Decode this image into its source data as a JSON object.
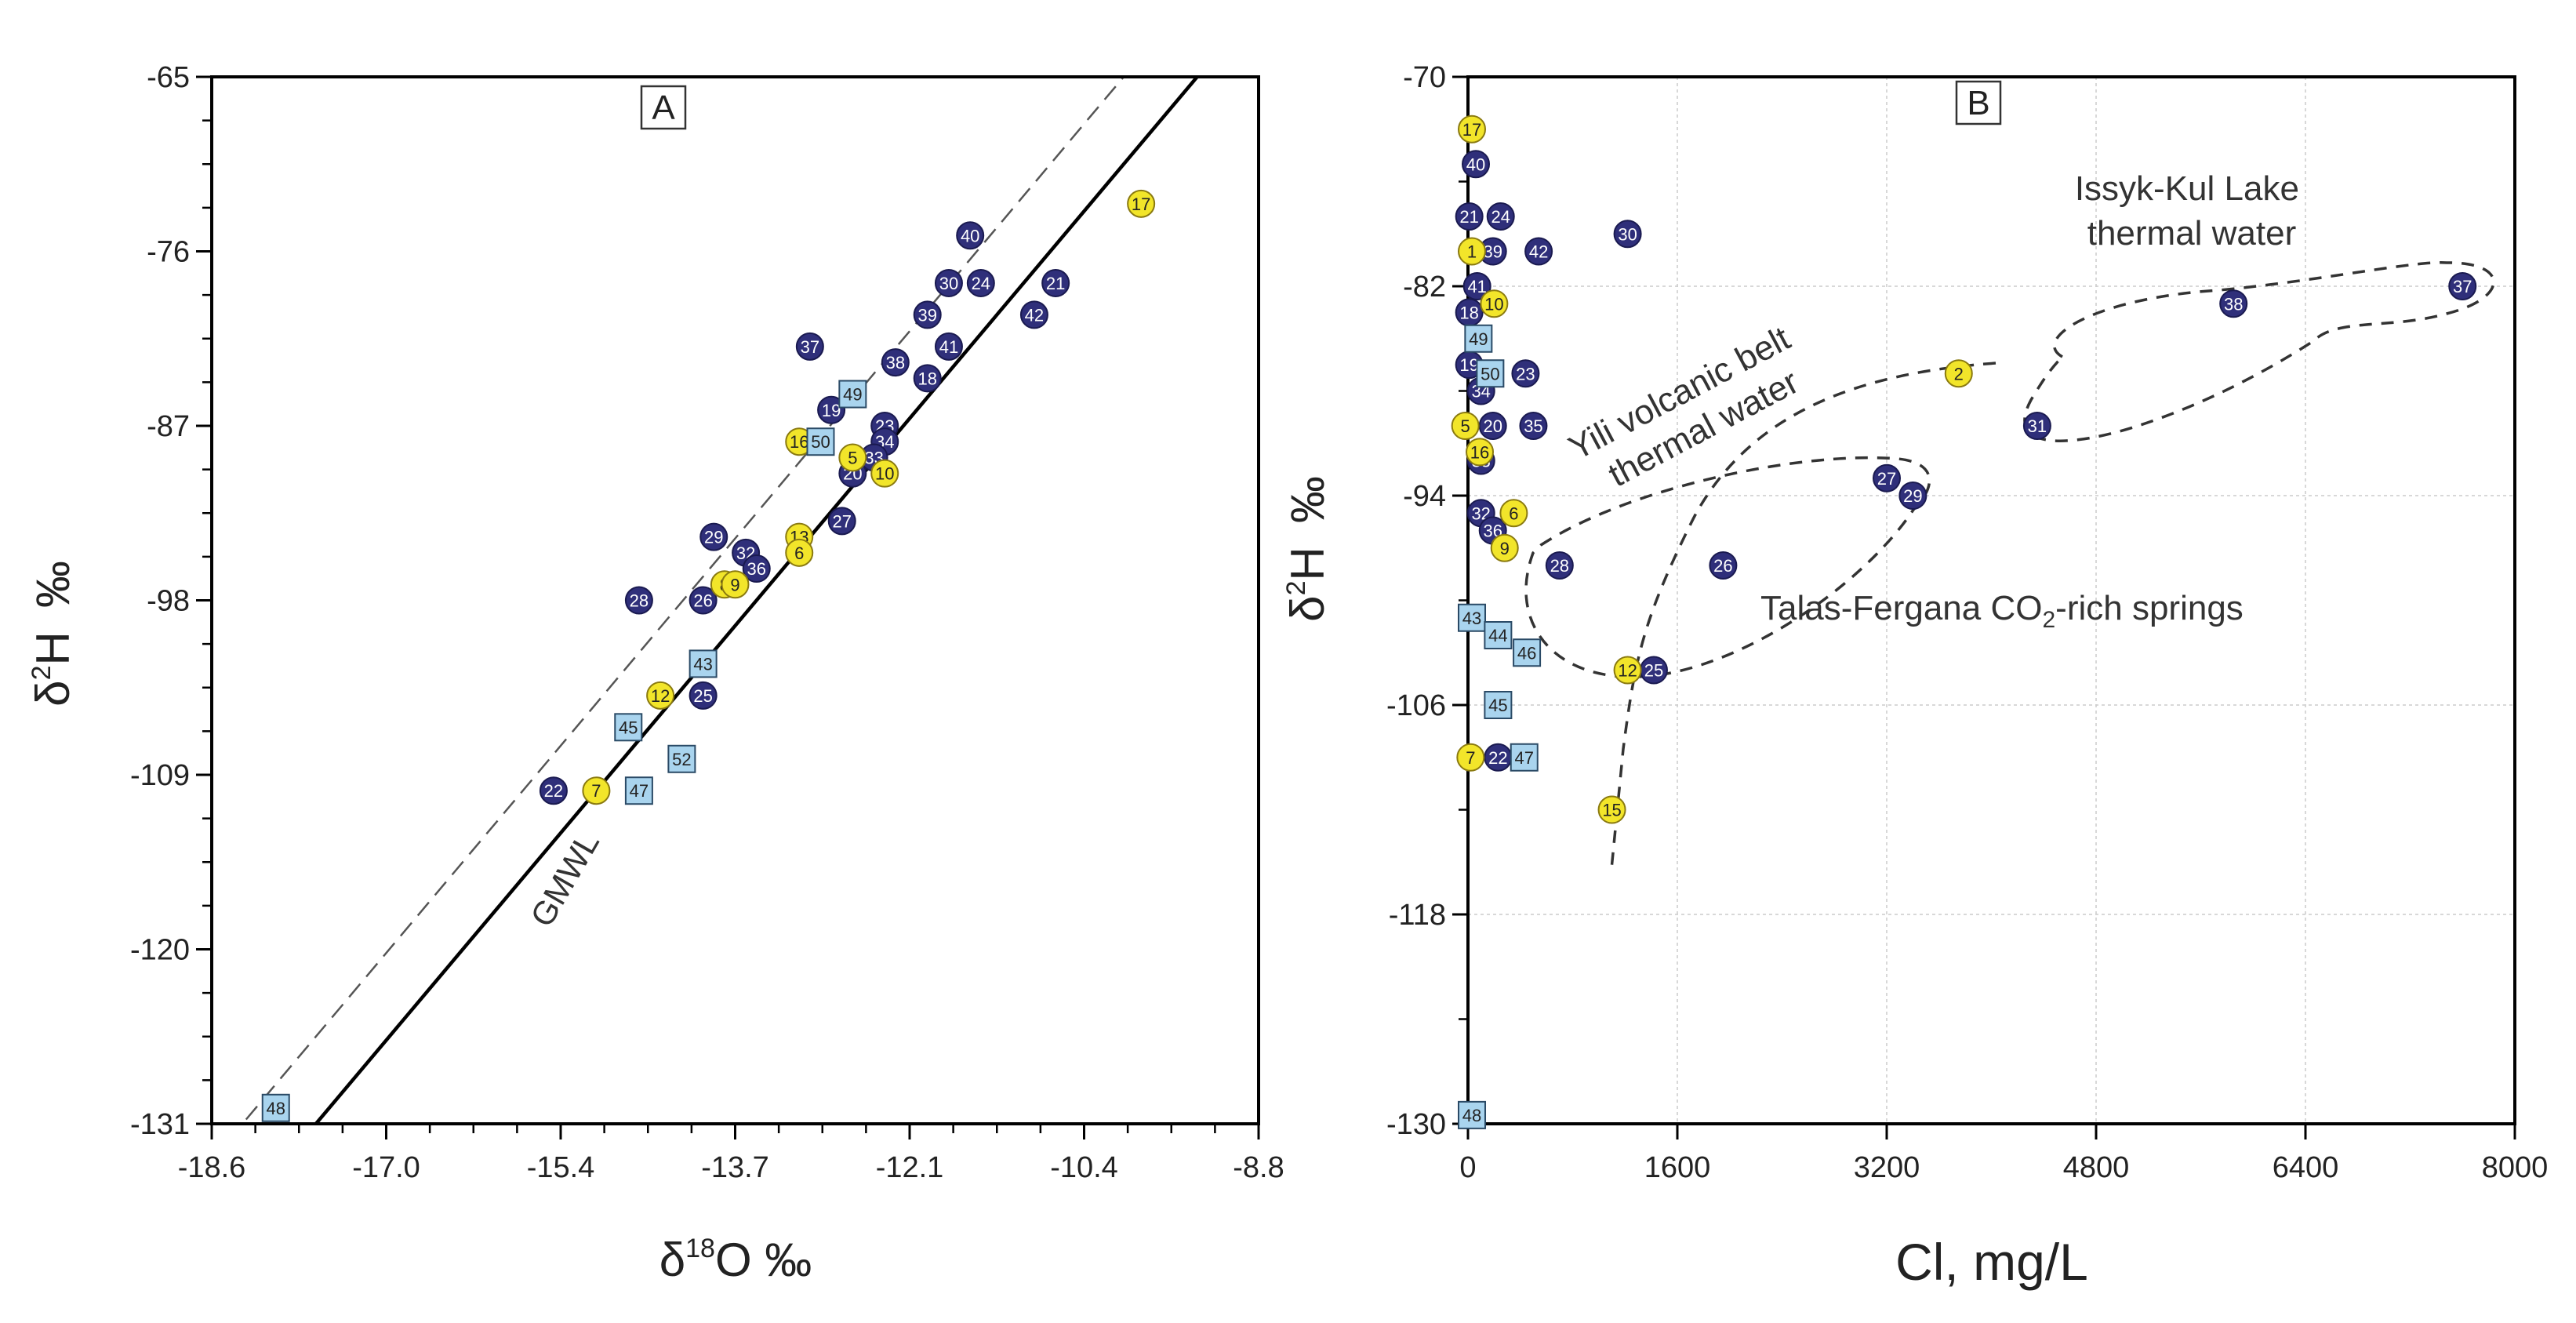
{
  "colors": {
    "thermal": "#2f2f7a",
    "co2": "#f2e52a",
    "yili": "#a9d4ee",
    "axis": "#000000",
    "grid": "#cccccc"
  },
  "chart_data": [
    {
      "type": "scatter",
      "panel_label": "A",
      "xlabel": "δ18O ‰",
      "xlabel_parts": {
        "delta": "δ",
        "sup": "18",
        "main": "O ‰"
      },
      "ylabel": "δ2H ‰",
      "ylabel_parts": {
        "delta": "δ",
        "sup": "2",
        "main": "H",
        "permil": "‰"
      },
      "xlim": [
        -18.6,
        -8.8
      ],
      "ylim": [
        -131,
        -65
      ],
      "x_tick_labels": [
        "-18.6",
        "-17.0",
        "-15.4",
        "-13.7",
        "-12.1",
        "-10.4",
        "-8.8"
      ],
      "y_tick_labels": [
        "-65",
        "-76",
        "-87",
        "-98",
        "-109",
        "-120",
        "-131"
      ],
      "lines": [
        {
          "name": "GMWL",
          "style": "solid",
          "slope": 8,
          "intercept": 10,
          "label": "GMWL"
        },
        {
          "name": "LMWL",
          "style": "dashed",
          "slope": 8,
          "intercept": 15.5
        }
      ],
      "series": [
        {
          "name": "thermal",
          "marker": "circle",
          "points": [
            {
              "label": "40",
              "x": -11.5,
              "y": -75.0
            },
            {
              "label": "30",
              "x": -11.7,
              "y": -78.0
            },
            {
              "label": "24",
              "x": -11.4,
              "y": -78.0
            },
            {
              "label": "21",
              "x": -10.7,
              "y": -78.0
            },
            {
              "label": "39",
              "x": -11.9,
              "y": -80.0
            },
            {
              "label": "42",
              "x": -10.9,
              "y": -80.0
            },
            {
              "label": "37",
              "x": -13.0,
              "y": -82.0
            },
            {
              "label": "41",
              "x": -11.7,
              "y": -82.0
            },
            {
              "label": "38",
              "x": -12.2,
              "y": -83.0
            },
            {
              "label": "18",
              "x": -11.9,
              "y": -84.0
            },
            {
              "label": "19",
              "x": -12.8,
              "y": -86.0
            },
            {
              "label": "23",
              "x": -12.3,
              "y": -87.0
            },
            {
              "label": "34",
              "x": -12.3,
              "y": -88.0
            },
            {
              "label": "33",
              "x": -12.4,
              "y": -89.0
            },
            {
              "label": "20",
              "x": -12.6,
              "y": -90.0
            },
            {
              "label": "27",
              "x": -12.7,
              "y": -93.0
            },
            {
              "label": "29",
              "x": -13.9,
              "y": -94.0
            },
            {
              "label": "32",
              "x": -13.6,
              "y": -95.0
            },
            {
              "label": "36",
              "x": -13.5,
              "y": -96.0
            },
            {
              "label": "28",
              "x": -14.6,
              "y": -98.0
            },
            {
              "label": "26",
              "x": -14.0,
              "y": -98.0
            },
            {
              "label": "25",
              "x": -14.0,
              "y": -104.0
            },
            {
              "label": "22",
              "x": -15.4,
              "y": -110.0
            }
          ]
        },
        {
          "name": "co2",
          "marker": "circle",
          "points": [
            {
              "label": "17",
              "x": -9.9,
              "y": -73.0
            },
            {
              "label": "16",
              "x": -13.1,
              "y": -88.0
            },
            {
              "label": "5",
              "x": -12.6,
              "y": -89.0
            },
            {
              "label": "10",
              "x": -12.3,
              "y": -90.0
            },
            {
              "label": "13",
              "x": -13.1,
              "y": -94.0
            },
            {
              "label": "6",
              "x": -13.1,
              "y": -95.0
            },
            {
              "label": "8",
              "x": -13.8,
              "y": -97.0
            },
            {
              "label": "9",
              "x": -13.7,
              "y": -97.0
            },
            {
              "label": "12",
              "x": -14.4,
              "y": -104.0
            },
            {
              "label": "7",
              "x": -15.0,
              "y": -110.0
            }
          ]
        },
        {
          "name": "yili",
          "marker": "square",
          "points": [
            {
              "label": "49",
              "x": -12.6,
              "y": -85.0
            },
            {
              "label": "50",
              "x": -12.9,
              "y": -88.0
            },
            {
              "label": "43",
              "x": -14.0,
              "y": -102.0
            },
            {
              "label": "45",
              "x": -14.7,
              "y": -106.0
            },
            {
              "label": "52",
              "x": -14.2,
              "y": -108.0
            },
            {
              "label": "47",
              "x": -14.6,
              "y": -110.0
            },
            {
              "label": "48",
              "x": -18.0,
              "y": -130.0
            }
          ]
        }
      ]
    },
    {
      "type": "scatter",
      "panel_label": "B",
      "xlabel": "Cl, mg/L",
      "ylabel": "δ2H ‰",
      "ylabel_parts": {
        "delta": "δ",
        "sup": "2",
        "main": "H",
        "permil": "‰"
      },
      "xlim": [
        0,
        8000
      ],
      "ylim": [
        -130,
        -70
      ],
      "grid": true,
      "x_tick_labels": [
        "0",
        "1600",
        "3200",
        "4800",
        "6400",
        "8000"
      ],
      "y_tick_labels": [
        "-70",
        "-82",
        "-94",
        "-106",
        "-118",
        "-130"
      ],
      "annotations": [
        {
          "id": "issyk",
          "lines": [
            "Issyk-Kul Lake",
            "thermal water"
          ]
        },
        {
          "id": "yili",
          "lines": [
            "Yili volcanic belt",
            "thermal water"
          ]
        },
        {
          "id": "talas",
          "pre": "Talas-Fergana CO",
          "sub": "2",
          "post": "-rich springs"
        }
      ],
      "series": [
        {
          "name": "thermal",
          "marker": "circle",
          "points": [
            {
              "label": "40",
              "x": 60,
              "y": -75.0
            },
            {
              "label": "21",
              "x": 10,
              "y": -78.0
            },
            {
              "label": "24",
              "x": 250,
              "y": -78.0
            },
            {
              "label": "30",
              "x": 1220,
              "y": -79.0
            },
            {
              "label": "39",
              "x": 190,
              "y": -80.0
            },
            {
              "label": "42",
              "x": 540,
              "y": -80.0
            },
            {
              "label": "41",
              "x": 70,
              "y": -82.0
            },
            {
              "label": "18",
              "x": 10,
              "y": -83.5
            },
            {
              "label": "19",
              "x": 10,
              "y": -86.5
            },
            {
              "label": "23",
              "x": 440,
              "y": -87.0
            },
            {
              "label": "34",
              "x": 100,
              "y": -88.0
            },
            {
              "label": "20",
              "x": 190,
              "y": -90.0
            },
            {
              "label": "35",
              "x": 500,
              "y": -90.0
            },
            {
              "label": "33",
              "x": 100,
              "y": -92.0
            },
            {
              "label": "32",
              "x": 100,
              "y": -95.0
            },
            {
              "label": "36",
              "x": 190,
              "y": -96.0
            },
            {
              "label": "28",
              "x": 700,
              "y": -98.0
            },
            {
              "label": "26",
              "x": 1950,
              "y": -98.0
            },
            {
              "label": "27",
              "x": 3200,
              "y": -93.0
            },
            {
              "label": "29",
              "x": 3400,
              "y": -94.0
            },
            {
              "label": "25",
              "x": 1420,
              "y": -104.0
            },
            {
              "label": "22",
              "x": 230,
              "y": -109.0
            },
            {
              "label": "31",
              "x": 4350,
              "y": -90.0
            },
            {
              "label": "38",
              "x": 5850,
              "y": -83.0
            },
            {
              "label": "37",
              "x": 7600,
              "y": -82.0
            }
          ]
        },
        {
          "name": "co2",
          "marker": "circle",
          "points": [
            {
              "label": "17",
              "x": 30,
              "y": -73.0
            },
            {
              "label": "1",
              "x": 30,
              "y": -80.0
            },
            {
              "label": "10",
              "x": 200,
              "y": -83.0
            },
            {
              "label": "2",
              "x": 3750,
              "y": -87.0
            },
            {
              "label": "5",
              "x": -20,
              "y": -90.0
            },
            {
              "label": "16",
              "x": 90,
              "y": -91.5
            },
            {
              "label": "6",
              "x": 350,
              "y": -95.0
            },
            {
              "label": "9",
              "x": 280,
              "y": -97.0
            },
            {
              "label": "12",
              "x": 1220,
              "y": -104.0
            },
            {
              "label": "7",
              "x": 20,
              "y": -109.0
            },
            {
              "label": "15",
              "x": 1100,
              "y": -112.0
            }
          ]
        },
        {
          "name": "yili",
          "marker": "square",
          "points": [
            {
              "label": "49",
              "x": 80,
              "y": -85.0
            },
            {
              "label": "50",
              "x": 170,
              "y": -87.0
            },
            {
              "label": "43",
              "x": 30,
              "y": -101.0
            },
            {
              "label": "44",
              "x": 230,
              "y": -102.0
            },
            {
              "label": "46",
              "x": 450,
              "y": -103.0
            },
            {
              "label": "45",
              "x": 230,
              "y": -106.0
            },
            {
              "label": "47",
              "x": 430,
              "y": -109.0
            },
            {
              "label": "48",
              "x": 30,
              "y": -129.5
            }
          ]
        }
      ]
    }
  ]
}
